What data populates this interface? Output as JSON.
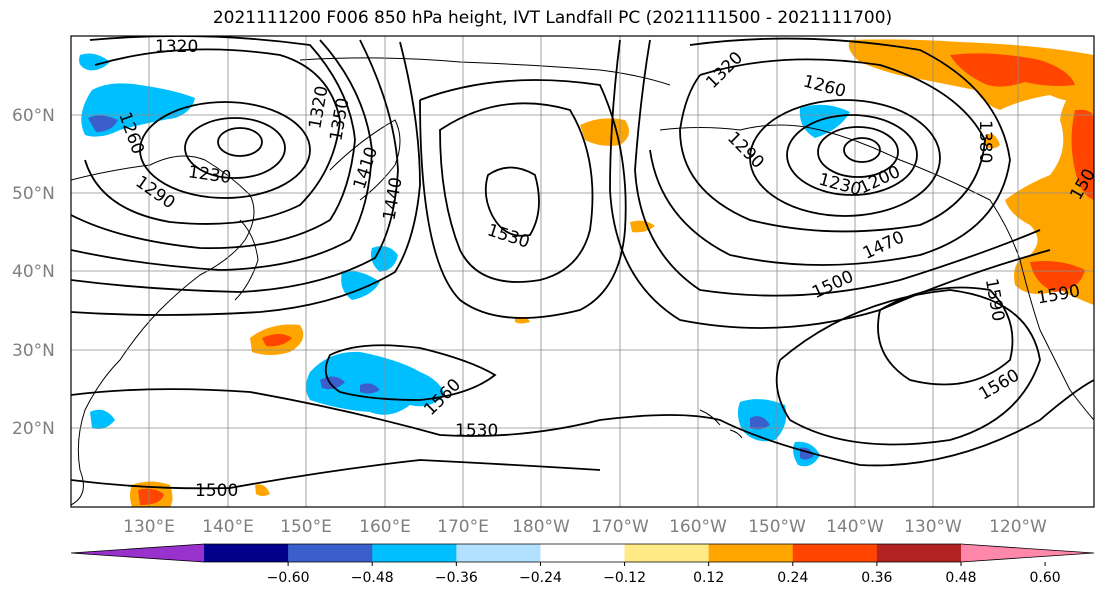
{
  "title": "2021111200 F006 850 hPa height, IVT Landfall PC (2021111500 - 2021111700)",
  "latitude_labels": [
    "60°N",
    "50°N",
    "40°N",
    "30°N",
    "20°N"
  ],
  "longitude_labels": [
    "130°E",
    "140°E",
    "150°E",
    "160°E",
    "170°E",
    "180°W",
    "170°W",
    "160°W",
    "150°W",
    "140°W",
    "130°W",
    "120°W"
  ],
  "contour_labels": [
    "1320",
    "1260",
    "1350",
    "1320",
    "1230",
    "1290",
    "1410",
    "1440",
    "1530",
    "1560",
    "1530",
    "1500",
    "1320",
    "1260",
    "1290",
    "1230",
    "1200",
    "1380",
    "1470",
    "1500",
    "1590",
    "1590",
    "1560",
    "150"
  ],
  "colorbar": {
    "ticks": [
      "−0.60",
      "−0.48",
      "−0.36",
      "−0.24",
      "−0.12",
      "0.12",
      "0.24",
      "0.36",
      "0.48",
      "0.60"
    ],
    "colors": [
      "#9932cc",
      "#00008b",
      "#3a5fcd",
      "#00bfff",
      "#b2e0ff",
      "#ffffff",
      "#ffea86",
      "#ffa500",
      "#ff4500",
      "#b22222",
      "#ff88aa"
    ]
  }
}
